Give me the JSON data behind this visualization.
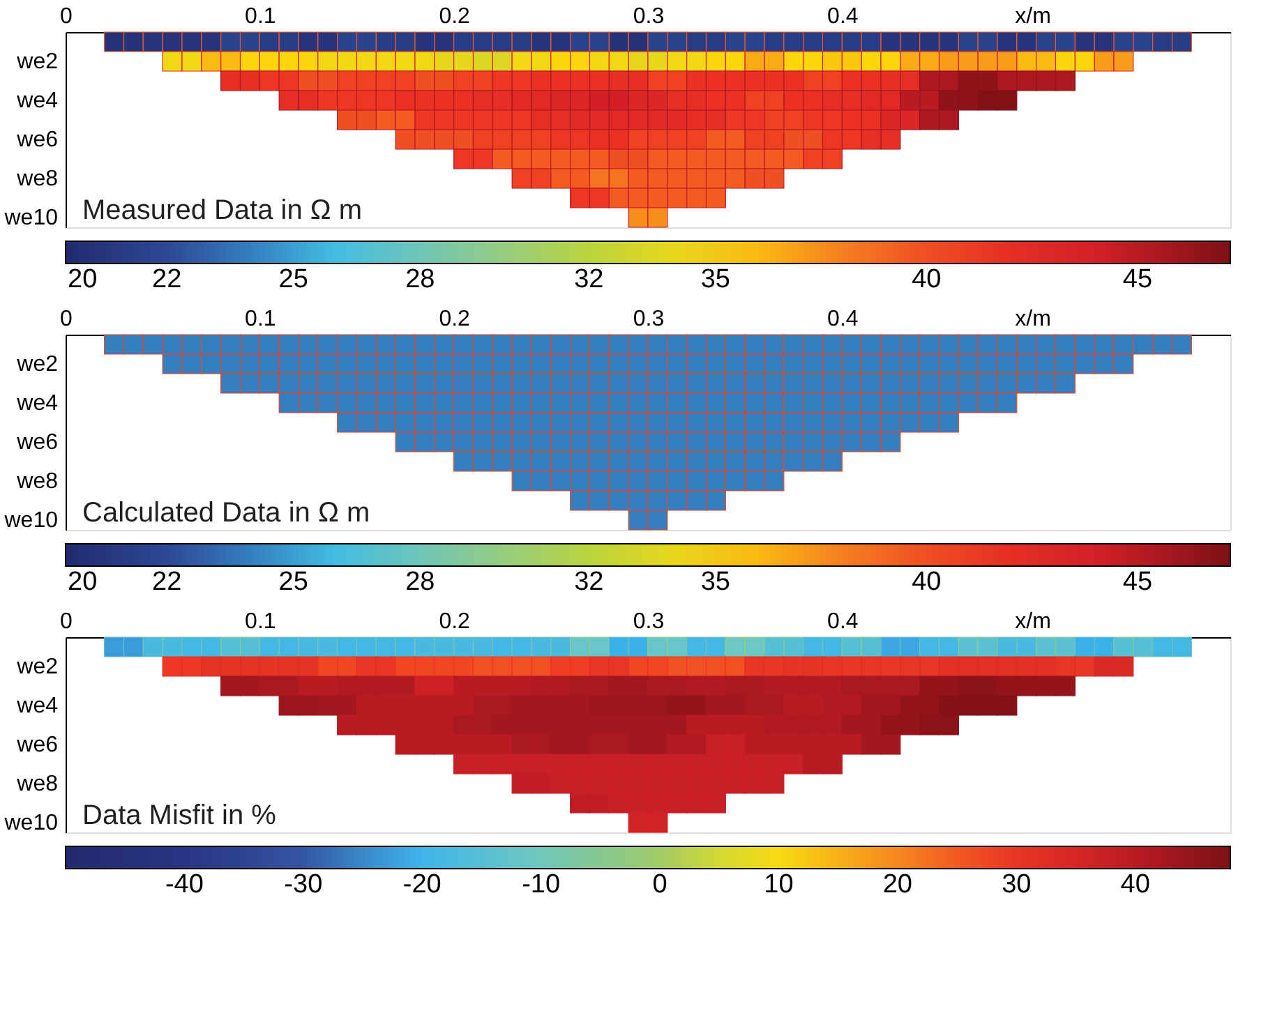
{
  "chart_data": [
    {
      "type": "heatmap",
      "annotations": [
        "Measured Data in Ω m"
      ],
      "x": [
        0.005,
        0.015,
        0.025,
        0.035,
        0.045,
        0.055,
        0.065,
        0.075,
        0.085,
        0.095,
        0.105,
        0.115,
        0.125,
        0.135,
        0.145,
        0.155,
        0.165,
        0.175,
        0.185,
        0.195,
        0.205,
        0.215,
        0.225,
        0.235,
        0.245,
        0.255,
        0.265,
        0.275,
        0.285,
        0.295,
        0.305,
        0.315,
        0.325,
        0.335,
        0.345,
        0.355,
        0.365,
        0.375,
        0.385,
        0.395,
        0.405,
        0.415,
        0.425,
        0.435,
        0.445,
        0.455,
        0.465,
        0.475,
        0.485,
        0.495,
        0.505,
        0.515,
        0.525,
        0.535,
        0.545,
        0.555,
        0.565,
        0.575,
        0.585,
        0.595
      ],
      "y_categories": [
        null,
        "we2",
        null,
        "we4",
        null,
        "we6",
        null,
        "we8",
        null,
        "we10"
      ],
      "xlim": [
        0,
        0.6
      ],
      "xticks": [
        0,
        0.1,
        0.2,
        0.3,
        0.4
      ],
      "xlabel": "x/m",
      "cells": [
        [
          null,
          null,
          20.3,
          20.3,
          20.5,
          20.5,
          20.5,
          20.5,
          21.5,
          21.5,
          21,
          21,
          20.5,
          20.5,
          21.5,
          21.5,
          21,
          21,
          20.5,
          20.5,
          21,
          21,
          21,
          21,
          20.5,
          20.5,
          21.5,
          21.5,
          20.3,
          20.3,
          21.5,
          21.5,
          21,
          21,
          21.5,
          21.5,
          21,
          21,
          21,
          21,
          21,
          21,
          20.5,
          20.5,
          20.5,
          20.5,
          21.5,
          21.5,
          20.5,
          20.5,
          21.5,
          21.5,
          20.5,
          20.5,
          21.5,
          21.5,
          21,
          21,
          null,
          null
        ],
        [
          null,
          null,
          null,
          null,
          null,
          34.5,
          34.5,
          36,
          36,
          35,
          35,
          35,
          35,
          34.5,
          34.5,
          34.5,
          34.5,
          34.5,
          34.5,
          34,
          34,
          33.5,
          33.5,
          34.5,
          34.5,
          35,
          35,
          34.5,
          34.5,
          34,
          34,
          34.5,
          34.5,
          35,
          35,
          36.5,
          36.5,
          35,
          35,
          35.5,
          35.5,
          35,
          35,
          36.5,
          36.5,
          37,
          37,
          37,
          37,
          36,
          36,
          35,
          35,
          37,
          37,
          null,
          null,
          null,
          null,
          null
        ],
        [
          null,
          null,
          null,
          null,
          null,
          null,
          null,
          null,
          42,
          42,
          41,
          41,
          40,
          40,
          40.5,
          40.5,
          40.5,
          40.5,
          40,
          40,
          40.5,
          40.5,
          41,
          41,
          41.5,
          41.5,
          41.5,
          41.5,
          42,
          42,
          40.5,
          40.5,
          41.5,
          41.5,
          41.5,
          41.5,
          41.5,
          41.5,
          40.5,
          40.5,
          41.5,
          41.5,
          42,
          42,
          45.5,
          45.5,
          46.5,
          46.5,
          45.5,
          45.5,
          45.5,
          45.5,
          null,
          null,
          null,
          null,
          null,
          null,
          null,
          null
        ],
        [
          null,
          null,
          null,
          null,
          null,
          null,
          null,
          null,
          null,
          null,
          null,
          42,
          42,
          41,
          41,
          41,
          41,
          41.5,
          41.5,
          41.5,
          41.5,
          42,
          42,
          42.5,
          42.5,
          43,
          43,
          44,
          44,
          43,
          43,
          42,
          42,
          41.5,
          41.5,
          40.5,
          40.5,
          41.5,
          41.5,
          42,
          42,
          42.5,
          42.5,
          45,
          45,
          46.5,
          46.5,
          47,
          47,
          null,
          null,
          null,
          null,
          null,
          null,
          null,
          null,
          null,
          null,
          null
        ],
        [
          null,
          null,
          null,
          null,
          null,
          null,
          null,
          null,
          null,
          null,
          null,
          null,
          null,
          null,
          40,
          40,
          39.5,
          39.5,
          41,
          41,
          41,
          41,
          41,
          41,
          42,
          42,
          42.5,
          42.5,
          42.5,
          42.5,
          42.5,
          42.5,
          42,
          42,
          41,
          41,
          40.5,
          40.5,
          41,
          41,
          41.5,
          41.5,
          43,
          43,
          45.5,
          45.5,
          null,
          null,
          null,
          null,
          null,
          null,
          null,
          null,
          null,
          null,
          null,
          null,
          null,
          null
        ],
        [
          null,
          null,
          null,
          null,
          null,
          null,
          null,
          null,
          null,
          null,
          null,
          null,
          null,
          null,
          null,
          null,
          null,
          40,
          40,
          40,
          40,
          40.5,
          40.5,
          40.5,
          40.5,
          41,
          41,
          41.5,
          41.5,
          40.5,
          40.5,
          40.5,
          40.5,
          39.5,
          39.5,
          40.5,
          40.5,
          40,
          40,
          41,
          41,
          42,
          42,
          null,
          null,
          null,
          null,
          null,
          null,
          null,
          null,
          null,
          null,
          null,
          null,
          null,
          null,
          null,
          null,
          null
        ],
        [
          null,
          null,
          null,
          null,
          null,
          null,
          null,
          null,
          null,
          null,
          null,
          null,
          null,
          null,
          null,
          null,
          null,
          null,
          null,
          null,
          41,
          41,
          39.5,
          39.5,
          39.5,
          39.5,
          39.5,
          39.5,
          40,
          40,
          39.5,
          39.5,
          39.5,
          39.5,
          39.5,
          39.5,
          39.5,
          39.5,
          40.5,
          40.5,
          null,
          null,
          null,
          null,
          null,
          null,
          null,
          null,
          null,
          null,
          null,
          null,
          null,
          null,
          null,
          null,
          null,
          null,
          null,
          null
        ],
        [
          null,
          null,
          null,
          null,
          null,
          null,
          null,
          null,
          null,
          null,
          null,
          null,
          null,
          null,
          null,
          null,
          null,
          null,
          null,
          null,
          null,
          null,
          null,
          40.5,
          40.5,
          39.5,
          39.5,
          38.5,
          38.5,
          39.5,
          39.5,
          39.5,
          39.5,
          39.5,
          39.5,
          40,
          40,
          null,
          null,
          null,
          null,
          null,
          null,
          null,
          null,
          null,
          null,
          null,
          null,
          null,
          null,
          null,
          null,
          null,
          null,
          null,
          null,
          null,
          null,
          null
        ],
        [
          null,
          null,
          null,
          null,
          null,
          null,
          null,
          null,
          null,
          null,
          null,
          null,
          null,
          null,
          null,
          null,
          null,
          null,
          null,
          null,
          null,
          null,
          null,
          null,
          null,
          null,
          41,
          41,
          39.5,
          39.5,
          39.5,
          39.5,
          39.5,
          39.5,
          null,
          null,
          null,
          null,
          null,
          null,
          null,
          null,
          null,
          null,
          null,
          null,
          null,
          null,
          null,
          null,
          null,
          null,
          null,
          null,
          null,
          null,
          null,
          null,
          null,
          null
        ],
        [
          null,
          null,
          null,
          null,
          null,
          null,
          null,
          null,
          null,
          null,
          null,
          null,
          null,
          null,
          null,
          null,
          null,
          null,
          null,
          null,
          null,
          null,
          null,
          null,
          null,
          null,
          null,
          null,
          null,
          37.5,
          37.5,
          null,
          null,
          null,
          null,
          null,
          null,
          null,
          null,
          null,
          null,
          null,
          null,
          null,
          null,
          null,
          null,
          null,
          null,
          null,
          null,
          null,
          null,
          null,
          null,
          null,
          null,
          null,
          null,
          null
        ]
      ],
      "clim": [
        19.6,
        47.2
      ],
      "cticks": [
        20,
        22,
        25,
        28,
        32,
        35,
        40,
        45
      ],
      "colors": [
        "#222a6e",
        "#3050a0",
        "#3cbce8",
        "#80c8a8",
        "#b8d440",
        "#fcd80c",
        "#f58020",
        "#ee3424",
        "#d21f27",
        "#7c1016"
      ]
    },
    {
      "type": "heatmap",
      "annotations": [
        "Calculated Data in Ω m"
      ],
      "x": [
        0.005,
        0.015,
        0.025,
        0.035,
        0.045,
        0.055,
        0.065,
        0.075,
        0.085,
        0.095,
        0.105,
        0.115,
        0.125,
        0.135,
        0.145,
        0.155,
        0.165,
        0.175,
        0.185,
        0.195,
        0.205,
        0.215,
        0.225,
        0.235,
        0.245,
        0.255,
        0.265,
        0.275,
        0.285,
        0.295,
        0.305,
        0.315,
        0.325,
        0.335,
        0.345,
        0.355,
        0.365,
        0.375,
        0.385,
        0.395,
        0.405,
        0.415,
        0.425,
        0.435,
        0.445,
        0.455,
        0.465,
        0.475,
        0.485,
        0.495,
        0.505,
        0.515,
        0.525,
        0.535,
        0.545,
        0.555,
        0.565,
        0.575,
        0.585,
        0.595
      ],
      "y_categories": [
        null,
        "we2",
        null,
        "we4",
        null,
        "we6",
        null,
        "we8",
        null,
        "we10"
      ],
      "xlim": [
        0,
        0.6
      ],
      "xticks": [
        0,
        0.1,
        0.2,
        0.3,
        0.4
      ],
      "xlabel": "x/m",
      "cells": [
        [
          null,
          null,
          24,
          24,
          24,
          24,
          24,
          24,
          24,
          24,
          24,
          24,
          24,
          24,
          24,
          24,
          24,
          24,
          24,
          24,
          24,
          24,
          24,
          24,
          24,
          24,
          24,
          24,
          24,
          24,
          24,
          24,
          24,
          24,
          24,
          24,
          24,
          24,
          24,
          24,
          24,
          24,
          24,
          24,
          24,
          24,
          24,
          24,
          24,
          24,
          24,
          24,
          24,
          24,
          24,
          24,
          24,
          24,
          null,
          null
        ],
        [
          null,
          null,
          null,
          null,
          null,
          24,
          24,
          24,
          24,
          24,
          24,
          24,
          24,
          24,
          24,
          24,
          24,
          24,
          24,
          24,
          24,
          24,
          24,
          24,
          24,
          24,
          24,
          24,
          24,
          24,
          24,
          24,
          24,
          24,
          24,
          24,
          24,
          24,
          24,
          24,
          24,
          24,
          24,
          24,
          24,
          24,
          24,
          24,
          24,
          24,
          24,
          24,
          24,
          24,
          24,
          null,
          null,
          null,
          null,
          null
        ],
        [
          null,
          null,
          null,
          null,
          null,
          null,
          null,
          null,
          24,
          24,
          24,
          24,
          24,
          24,
          24,
          24,
          24,
          24,
          24,
          24,
          24,
          24,
          24,
          24,
          24,
          24,
          24,
          24,
          24,
          24,
          24,
          24,
          24,
          24,
          24,
          24,
          24,
          24,
          24,
          24,
          24,
          24,
          24,
          24,
          24,
          24,
          24,
          24,
          24,
          24,
          24,
          24,
          null,
          null,
          null,
          null,
          null,
          null,
          null,
          null
        ],
        [
          null,
          null,
          null,
          null,
          null,
          null,
          null,
          null,
          null,
          null,
          null,
          24,
          24,
          24,
          24,
          24,
          24,
          24,
          24,
          24,
          24,
          24,
          24,
          24,
          24,
          24,
          24,
          24,
          24,
          24,
          24,
          24,
          24,
          24,
          24,
          24,
          24,
          24,
          24,
          24,
          24,
          24,
          24,
          24,
          24,
          24,
          24,
          24,
          24,
          null,
          null,
          null,
          null,
          null,
          null,
          null,
          null,
          null,
          null,
          null
        ],
        [
          null,
          null,
          null,
          null,
          null,
          null,
          null,
          null,
          null,
          null,
          null,
          null,
          null,
          null,
          24,
          24,
          24,
          24,
          24,
          24,
          24,
          24,
          24,
          24,
          24,
          24,
          24,
          24,
          24,
          24,
          24,
          24,
          24,
          24,
          24,
          24,
          24,
          24,
          24,
          24,
          24,
          24,
          24,
          24,
          24,
          24,
          null,
          null,
          null,
          null,
          null,
          null,
          null,
          null,
          null,
          null,
          null,
          null,
          null,
          null
        ],
        [
          null,
          null,
          null,
          null,
          null,
          null,
          null,
          null,
          null,
          null,
          null,
          null,
          null,
          null,
          null,
          null,
          null,
          24,
          24,
          24,
          24,
          24,
          24,
          24,
          24,
          24,
          24,
          24,
          24,
          24,
          24,
          24,
          24,
          24,
          24,
          24,
          24,
          24,
          24,
          24,
          24,
          24,
          24,
          null,
          null,
          null,
          null,
          null,
          null,
          null,
          null,
          null,
          null,
          null,
          null,
          null,
          null,
          null,
          null,
          null
        ],
        [
          null,
          null,
          null,
          null,
          null,
          null,
          null,
          null,
          null,
          null,
          null,
          null,
          null,
          null,
          null,
          null,
          null,
          null,
          null,
          null,
          24,
          24,
          24,
          24,
          24,
          24,
          24,
          24,
          24,
          24,
          24,
          24,
          24,
          24,
          24,
          24,
          24,
          24,
          24,
          24,
          null,
          null,
          null,
          null,
          null,
          null,
          null,
          null,
          null,
          null,
          null,
          null,
          null,
          null,
          null,
          null,
          null,
          null,
          null,
          null
        ],
        [
          null,
          null,
          null,
          null,
          null,
          null,
          null,
          null,
          null,
          null,
          null,
          null,
          null,
          null,
          null,
          null,
          null,
          null,
          null,
          null,
          null,
          null,
          null,
          24,
          24,
          24,
          24,
          24,
          24,
          24,
          24,
          24,
          24,
          24,
          24,
          24,
          24,
          null,
          null,
          null,
          null,
          null,
          null,
          null,
          null,
          null,
          null,
          null,
          null,
          null,
          null,
          null,
          null,
          null,
          null,
          null,
          null,
          null,
          null,
          null
        ],
        [
          null,
          null,
          null,
          null,
          null,
          null,
          null,
          null,
          null,
          null,
          null,
          null,
          null,
          null,
          null,
          null,
          null,
          null,
          null,
          null,
          null,
          null,
          null,
          null,
          null,
          null,
          24,
          24,
          24,
          24,
          24,
          24,
          24,
          24,
          null,
          null,
          null,
          null,
          null,
          null,
          null,
          null,
          null,
          null,
          null,
          null,
          null,
          null,
          null,
          null,
          null,
          null,
          null,
          null,
          null,
          null,
          null,
          null,
          null,
          null
        ],
        [
          null,
          null,
          null,
          null,
          null,
          null,
          null,
          null,
          null,
          null,
          null,
          null,
          null,
          null,
          null,
          null,
          null,
          null,
          null,
          null,
          null,
          null,
          null,
          null,
          null,
          null,
          null,
          null,
          null,
          24,
          24,
          null,
          null,
          null,
          null,
          null,
          null,
          null,
          null,
          null,
          null,
          null,
          null,
          null,
          null,
          null,
          null,
          null,
          null,
          null,
          null,
          null,
          null,
          null,
          null,
          null,
          null,
          null,
          null,
          null
        ]
      ],
      "clim": [
        19.6,
        47.2
      ],
      "cticks": [
        20,
        22,
        25,
        28,
        32,
        35,
        40,
        45
      ],
      "colors": [
        "#222a6e",
        "#3050a0",
        "#3cbce8",
        "#80c8a8",
        "#b8d440",
        "#fcd80c",
        "#f58020",
        "#ee3424",
        "#d21f27",
        "#7c1016"
      ]
    },
    {
      "type": "heatmap",
      "annotations": [
        "Data Misfit in %"
      ],
      "x": [
        0.005,
        0.015,
        0.025,
        0.035,
        0.045,
        0.055,
        0.065,
        0.075,
        0.085,
        0.095,
        0.105,
        0.115,
        0.125,
        0.135,
        0.145,
        0.155,
        0.165,
        0.175,
        0.185,
        0.195,
        0.205,
        0.215,
        0.225,
        0.235,
        0.245,
        0.255,
        0.265,
        0.275,
        0.285,
        0.295,
        0.305,
        0.315,
        0.325,
        0.335,
        0.345,
        0.355,
        0.365,
        0.375,
        0.385,
        0.395,
        0.405,
        0.415,
        0.425,
        0.435,
        0.445,
        0.455,
        0.465,
        0.475,
        0.485,
        0.495,
        0.505,
        0.515,
        0.525,
        0.535,
        0.545,
        0.555,
        0.565,
        0.575,
        0.585,
        0.595
      ],
      "y_categories": [
        null,
        "we2",
        null,
        "we4",
        null,
        "we6",
        null,
        "we8",
        null,
        "we10"
      ],
      "xlim": [
        0,
        0.6
      ],
      "xticks": [
        0,
        0.1,
        0.2,
        0.3,
        0.4
      ],
      "xlabel": "x/m",
      "cells": [
        [
          null,
          null,
          -23,
          -23,
          -18,
          -18,
          -19,
          -19,
          -15,
          -15,
          -19,
          -19,
          -18,
          -18,
          -19,
          -19,
          -19,
          -19,
          -18,
          -18,
          -18,
          -18,
          -19,
          -19,
          -18,
          -18,
          -12,
          -12,
          -21,
          -21,
          -12,
          -12,
          -19,
          -19,
          -11,
          -11,
          -15,
          -15,
          -19,
          -19,
          -15,
          -15,
          -22,
          -22,
          -19,
          -19,
          -14,
          -14,
          -18,
          -18,
          -14,
          -14,
          -21,
          -21,
          -15,
          -15,
          -19,
          -19,
          null,
          null
        ],
        [
          null,
          null,
          null,
          null,
          null,
          29,
          29,
          31,
          31,
          31,
          31,
          31,
          31,
          27,
          27,
          30,
          30,
          27,
          27,
          27,
          27,
          26,
          26,
          26,
          26,
          28,
          28,
          30,
          30,
          27,
          27,
          26,
          26,
          26,
          26,
          30,
          30,
          31,
          31,
          30,
          30,
          30,
          30,
          30,
          30,
          32,
          32,
          32,
          32,
          32,
          32,
          30,
          30,
          34,
          34,
          null,
          null,
          null,
          null,
          null
        ],
        [
          null,
          null,
          null,
          null,
          null,
          null,
          null,
          null,
          43,
          43,
          42,
          42,
          40,
          40,
          41,
          41,
          41,
          41,
          37,
          37,
          40,
          40,
          40,
          40,
          41,
          41,
          42,
          42,
          43,
          43,
          42,
          42,
          41,
          41,
          42,
          42,
          41,
          41,
          41,
          41,
          42,
          42,
          42,
          42,
          45,
          45,
          46,
          46,
          45,
          45,
          45,
          45,
          null,
          null,
          null,
          null,
          null,
          null,
          null,
          null
        ],
        [
          null,
          null,
          null,
          null,
          null,
          null,
          null,
          null,
          null,
          null,
          null,
          44,
          44,
          43,
          43,
          40,
          40,
          40,
          40,
          40,
          40,
          42,
          42,
          43,
          43,
          43,
          43,
          44,
          44,
          44,
          44,
          45,
          45,
          43,
          43,
          42,
          42,
          40,
          40,
          41,
          41,
          43,
          43,
          45,
          45,
          47,
          47,
          47,
          47,
          null,
          null,
          null,
          null,
          null,
          null,
          null,
          null,
          null,
          null,
          null
        ],
        [
          null,
          null,
          null,
          null,
          null,
          null,
          null,
          null,
          null,
          null,
          null,
          null,
          null,
          null,
          40,
          40,
          40,
          40,
          40,
          40,
          42,
          42,
          43,
          43,
          43,
          43,
          43,
          43,
          43,
          43,
          43,
          43,
          40,
          40,
          40,
          40,
          41,
          41,
          41,
          41,
          43,
          43,
          45,
          45,
          46,
          46,
          null,
          null,
          null,
          null,
          null,
          null,
          null,
          null,
          null,
          null,
          null,
          null,
          null,
          null
        ],
        [
          null,
          null,
          null,
          null,
          null,
          null,
          null,
          null,
          null,
          null,
          null,
          null,
          null,
          null,
          null,
          null,
          null,
          40,
          40,
          40,
          40,
          40,
          40,
          42,
          42,
          43,
          43,
          42,
          42,
          43,
          43,
          41,
          41,
          38,
          38,
          40,
          40,
          40,
          40,
          40,
          40,
          43,
          43,
          null,
          null,
          null,
          null,
          null,
          null,
          null,
          null,
          null,
          null,
          null,
          null,
          null,
          null,
          null,
          null,
          null
        ],
        [
          null,
          null,
          null,
          null,
          null,
          null,
          null,
          null,
          null,
          null,
          null,
          null,
          null,
          null,
          null,
          null,
          null,
          null,
          null,
          null,
          38,
          38,
          38,
          38,
          38,
          38,
          38,
          38,
          38,
          38,
          38,
          38,
          38,
          38,
          38,
          38,
          38,
          38,
          40,
          40,
          null,
          null,
          null,
          null,
          null,
          null,
          null,
          null,
          null,
          null,
          null,
          null,
          null,
          null,
          null,
          null,
          null,
          null,
          null,
          null
        ],
        [
          null,
          null,
          null,
          null,
          null,
          null,
          null,
          null,
          null,
          null,
          null,
          null,
          null,
          null,
          null,
          null,
          null,
          null,
          null,
          null,
          null,
          null,
          null,
          39,
          39,
          38,
          38,
          38,
          38,
          38,
          38,
          38,
          38,
          38,
          38,
          38,
          38,
          null,
          null,
          null,
          null,
          null,
          null,
          null,
          null,
          null,
          null,
          null,
          null,
          null,
          null,
          null,
          null,
          null,
          null,
          null,
          null,
          null,
          null,
          null
        ],
        [
          null,
          null,
          null,
          null,
          null,
          null,
          null,
          null,
          null,
          null,
          null,
          null,
          null,
          null,
          null,
          null,
          null,
          null,
          null,
          null,
          null,
          null,
          null,
          null,
          null,
          null,
          39,
          39,
          38,
          38,
          38,
          38,
          38,
          38,
          null,
          null,
          null,
          null,
          null,
          null,
          null,
          null,
          null,
          null,
          null,
          null,
          null,
          null,
          null,
          null,
          null,
          null,
          null,
          null,
          null,
          null,
          null,
          null,
          null,
          null
        ],
        [
          null,
          null,
          null,
          null,
          null,
          null,
          null,
          null,
          null,
          null,
          null,
          null,
          null,
          null,
          null,
          null,
          null,
          null,
          null,
          null,
          null,
          null,
          null,
          null,
          null,
          null,
          null,
          null,
          null,
          36,
          36,
          null,
          null,
          null,
          null,
          null,
          null,
          null,
          null,
          null,
          null,
          null,
          null,
          null,
          null,
          null,
          null,
          null,
          null,
          null,
          null,
          null,
          null,
          null,
          null,
          null,
          null,
          null,
          null,
          null
        ]
      ],
      "clim": [
        -50,
        48
      ],
      "cticks": [
        -40,
        -30,
        -20,
        -10,
        0,
        10,
        20,
        30,
        40
      ],
      "colors": [
        "#222a6e",
        "#293384",
        "#3552a0",
        "#3cb4ec",
        "#6cc8c4",
        "#98c870",
        "#f8e410",
        "#f7941e",
        "#ef3a24",
        "#c81e26",
        "#7c1016"
      ]
    }
  ]
}
